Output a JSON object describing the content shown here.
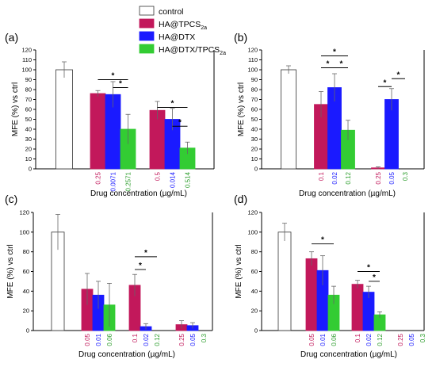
{
  "legend": {
    "items": [
      {
        "label": "control",
        "sub": "",
        "color": "#ffffff"
      },
      {
        "label": "HA@TPCS",
        "sub": "2a",
        "color": "#c2185b"
      },
      {
        "label": "HA@DTX",
        "sub": "",
        "color": "#1a1aff"
      },
      {
        "label": "HA@DTX/TPCS",
        "sub": "2a",
        "color": "#33cc33"
      }
    ]
  },
  "colors": {
    "control": "#ffffff",
    "tpcs": "#c2185b",
    "dtx": "#1a1aff",
    "combo": "#33cc33",
    "label_tpcs": "#c2185b",
    "label_dtx": "#1a1aff",
    "label_combo": "#2e9e2e"
  },
  "chart_data": [
    {
      "panel": "(a)",
      "type": "bar",
      "ylabel": "MFE (%) vs ctrl",
      "xlabel": "Drug concentration (µg/mL)",
      "ylim": [
        0,
        120
      ],
      "yticks": [
        0,
        10,
        20,
        30,
        40,
        50,
        60,
        70,
        80,
        90,
        100,
        110,
        120
      ],
      "groups": [
        {
          "bars": [
            {
              "series": "control",
              "value": 100,
              "err": 8
            }
          ]
        },
        {
          "bars": [
            {
              "series": "tpcs",
              "value": 76,
              "err": 3,
              "label": "0.25"
            },
            {
              "series": "dtx",
              "value": 75,
              "err": 13,
              "label": "0.0071"
            },
            {
              "series": "combo",
              "value": 40,
              "err": 15,
              "label": "0.2571"
            }
          ]
        },
        {
          "bars": [
            {
              "series": "tpcs",
              "value": 59,
              "err": 9,
              "label": "0.5"
            },
            {
              "series": "dtx",
              "value": 50,
              "err": 11,
              "label": "0.014"
            },
            {
              "series": "combo",
              "value": 21,
              "err": 6,
              "label": "0.514"
            }
          ]
        }
      ],
      "significance": [
        {
          "from": [
            1,
            0
          ],
          "to": [
            1,
            2
          ],
          "y": 90
        },
        {
          "from": [
            1,
            1
          ],
          "to": [
            1,
            2
          ],
          "y": 82
        },
        {
          "from": [
            2,
            0
          ],
          "to": [
            2,
            2
          ],
          "y": 62
        },
        {
          "from": [
            2,
            1
          ],
          "to": [
            2,
            2
          ],
          "y": 43
        }
      ]
    },
    {
      "panel": "(b)",
      "type": "bar",
      "ylabel": "MFE (%) vs ctrl",
      "xlabel": "Drug concentration (µg/mL)",
      "ylim": [
        0,
        120
      ],
      "yticks": [
        0,
        10,
        20,
        30,
        40,
        50,
        60,
        70,
        80,
        90,
        100,
        110,
        120
      ],
      "groups": [
        {
          "bars": [
            {
              "series": "control",
              "value": 100,
              "err": 4
            }
          ]
        },
        {
          "bars": [
            {
              "series": "tpcs",
              "value": 65,
              "err": 13,
              "label": "0.1"
            },
            {
              "series": "dtx",
              "value": 82,
              "err": 14,
              "label": "0.02"
            },
            {
              "series": "combo",
              "value": 39,
              "err": 10,
              "label": "0.12"
            }
          ]
        },
        {
          "bars": [
            {
              "series": "tpcs",
              "value": 1,
              "err": 1,
              "label": "0.25"
            },
            {
              "series": "dtx",
              "value": 70,
              "err": 11,
              "label": "0.05"
            },
            {
              "series": "combo",
              "value": 0,
              "err": 0,
              "label": "0.3"
            }
          ]
        }
      ],
      "significance": [
        {
          "from": [
            1,
            0
          ],
          "to": [
            1,
            2
          ],
          "y": 114
        },
        {
          "from": [
            1,
            0
          ],
          "to": [
            1,
            1
          ],
          "y": 102
        },
        {
          "from": [
            1,
            1
          ],
          "to": [
            1,
            2
          ],
          "y": 102
        },
        {
          "from": [
            2,
            0
          ],
          "to": [
            2,
            1
          ],
          "y": 83
        },
        {
          "from": [
            2,
            1
          ],
          "to": [
            2,
            2
          ],
          "y": 91
        }
      ]
    },
    {
      "panel": "(c)",
      "type": "bar",
      "ylabel": "MFE (%) vs ctrl",
      "xlabel": "Drug concentration (µg/mL)",
      "ylim": [
        0,
        120
      ],
      "yticks": [
        0,
        20,
        40,
        60,
        80,
        100,
        120
      ],
      "groups": [
        {
          "bars": [
            {
              "series": "control",
              "value": 100,
              "err": 18
            }
          ]
        },
        {
          "bars": [
            {
              "series": "tpcs",
              "value": 42,
              "err": 16,
              "label": "0.05"
            },
            {
              "series": "dtx",
              "value": 36,
              "err": 14,
              "label": "0.01"
            },
            {
              "series": "combo",
              "value": 26,
              "err": 22,
              "label": "0.06"
            }
          ]
        },
        {
          "bars": [
            {
              "series": "tpcs",
              "value": 46,
              "err": 11,
              "label": "0.1"
            },
            {
              "series": "dtx",
              "value": 4,
              "err": 3,
              "label": "0.02"
            },
            {
              "series": "combo",
              "value": 0,
              "err": 0,
              "label": "0.12"
            }
          ]
        },
        {
          "bars": [
            {
              "series": "tpcs",
              "value": 6,
              "err": 4,
              "label": "0.25"
            },
            {
              "series": "dtx",
              "value": 5,
              "err": 3,
              "label": "0.05"
            },
            {
              "series": "combo",
              "value": 0,
              "err": 0,
              "label": "0.3"
            }
          ]
        }
      ],
      "significance": [
        {
          "from": [
            2,
            0
          ],
          "to": [
            2,
            2
          ],
          "y": 75
        },
        {
          "from": [
            2,
            0
          ],
          "to": [
            2,
            1
          ],
          "y": 62
        }
      ]
    },
    {
      "panel": "(d)",
      "type": "bar",
      "ylabel": "MFE (%) vs ctrl",
      "xlabel": "Drug concentration (µg/mL)",
      "ylim": [
        0,
        120
      ],
      "yticks": [
        0,
        20,
        40,
        60,
        80,
        100,
        120
      ],
      "groups": [
        {
          "bars": [
            {
              "series": "control",
              "value": 100,
              "err": 9
            }
          ]
        },
        {
          "bars": [
            {
              "series": "tpcs",
              "value": 73,
              "err": 7,
              "label": "0.05"
            },
            {
              "series": "dtx",
              "value": 61,
              "err": 15,
              "label": "0.01"
            },
            {
              "series": "combo",
              "value": 36,
              "err": 9,
              "label": "0.06"
            }
          ]
        },
        {
          "bars": [
            {
              "series": "tpcs",
              "value": 47,
              "err": 4,
              "label": "0.1"
            },
            {
              "series": "dtx",
              "value": 39,
              "err": 6,
              "label": "0.02"
            },
            {
              "series": "combo",
              "value": 16,
              "err": 3,
              "label": "0.12"
            }
          ]
        },
        {
          "bars": [
            {
              "series": "tpcs",
              "value": 0,
              "err": 0,
              "label": "0.25"
            },
            {
              "series": "dtx",
              "value": 0,
              "err": 0,
              "label": "0.05"
            },
            {
              "series": "combo",
              "value": 0,
              "err": 0,
              "label": "0.3"
            }
          ]
        }
      ],
      "significance": [
        {
          "from": [
            1,
            0
          ],
          "to": [
            1,
            2
          ],
          "y": 88
        },
        {
          "from": [
            2,
            0
          ],
          "to": [
            2,
            2
          ],
          "y": 60
        },
        {
          "from": [
            2,
            1
          ],
          "to": [
            2,
            2
          ],
          "y": 50
        }
      ]
    }
  ]
}
